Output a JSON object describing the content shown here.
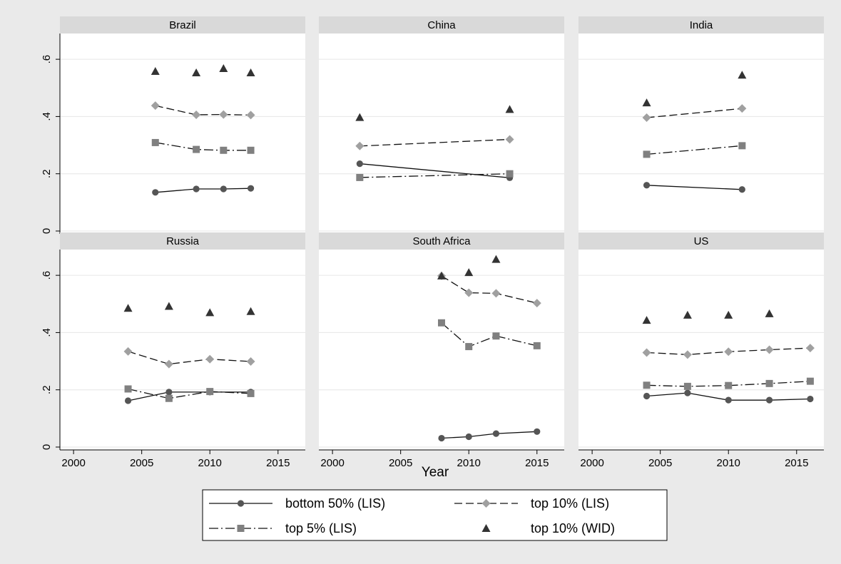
{
  "chart_data": {
    "type": "line",
    "xlabel": "Year",
    "xlim": [
      1999,
      2017
    ],
    "ylim": [
      -0.01,
      0.69
    ],
    "x_ticks": [
      "2000",
      "2005",
      "2010",
      "2015"
    ],
    "y_ticks": [
      "0",
      ".2",
      ".4",
      ".6"
    ],
    "grid": true,
    "legend_position": "bottom",
    "legend": [
      {
        "name": "bottom 50% (LIS)",
        "marker": "circle",
        "line": "solid",
        "color": "#555555"
      },
      {
        "name": "top 10% (LIS)",
        "marker": "diamond",
        "line": "dashed",
        "color": "#a0a0a0"
      },
      {
        "name": "top 5% (LIS)",
        "marker": "square",
        "line": "dashdot",
        "color": "#808080"
      },
      {
        "name": "top 10% (WID)",
        "marker": "triangle",
        "line": "none",
        "color": "#333333"
      }
    ],
    "panels": [
      {
        "title": "Brazil",
        "series": [
          {
            "key": "bottom50",
            "x": [
              2006,
              2009,
              2011,
              2013
            ],
            "y": [
              0.135,
              0.147,
              0.147,
              0.149
            ]
          },
          {
            "key": "top10lis",
            "x": [
              2006,
              2009,
              2011,
              2013
            ],
            "y": [
              0.438,
              0.406,
              0.407,
              0.405
            ]
          },
          {
            "key": "top5lis",
            "x": [
              2006,
              2009,
              2011,
              2013
            ],
            "y": [
              0.309,
              0.285,
              0.282,
              0.282
            ]
          },
          {
            "key": "top10wid",
            "x": [
              2006,
              2009,
              2011,
              2013
            ],
            "y": [
              0.558,
              0.553,
              0.568,
              0.553
            ]
          }
        ]
      },
      {
        "title": "China",
        "series": [
          {
            "key": "bottom50",
            "x": [
              2002,
              2013
            ],
            "y": [
              0.235,
              0.186
            ]
          },
          {
            "key": "top10lis",
            "x": [
              2002,
              2013
            ],
            "y": [
              0.297,
              0.32
            ]
          },
          {
            "key": "top5lis",
            "x": [
              2002,
              2013
            ],
            "y": [
              0.187,
              0.2
            ]
          },
          {
            "key": "top10wid",
            "x": [
              2002,
              2013
            ],
            "y": [
              0.397,
              0.425
            ]
          }
        ]
      },
      {
        "title": "India",
        "series": [
          {
            "key": "bottom50",
            "x": [
              2004,
              2011
            ],
            "y": [
              0.16,
              0.145
            ]
          },
          {
            "key": "top10lis",
            "x": [
              2004,
              2011
            ],
            "y": [
              0.396,
              0.428
            ]
          },
          {
            "key": "top5lis",
            "x": [
              2004,
              2011
            ],
            "y": [
              0.268,
              0.298
            ]
          },
          {
            "key": "top10wid",
            "x": [
              2004,
              2011
            ],
            "y": [
              0.448,
              0.545
            ]
          }
        ]
      },
      {
        "title": "Russia",
        "series": [
          {
            "key": "bottom50",
            "x": [
              2004,
              2007,
              2010,
              2013
            ],
            "y": [
              0.162,
              0.192,
              0.192,
              0.192
            ]
          },
          {
            "key": "top10lis",
            "x": [
              2004,
              2007,
              2010,
              2013
            ],
            "y": [
              0.334,
              0.29,
              0.307,
              0.299
            ]
          },
          {
            "key": "top5lis",
            "x": [
              2004,
              2007,
              2010,
              2013
            ],
            "y": [
              0.203,
              0.17,
              0.194,
              0.187
            ]
          },
          {
            "key": "top10wid",
            "x": [
              2004,
              2007,
              2010,
              2013
            ],
            "y": [
              0.485,
              0.492,
              0.47,
              0.474
            ]
          }
        ]
      },
      {
        "title": "South Africa",
        "series": [
          {
            "key": "bottom50",
            "x": [
              2008,
              2010,
              2012,
              2015
            ],
            "y": [
              0.031,
              0.036,
              0.047,
              0.054
            ]
          },
          {
            "key": "top10lis",
            "x": [
              2008,
              2010,
              2012,
              2015
            ],
            "y": [
              0.598,
              0.539,
              0.537,
              0.503
            ]
          },
          {
            "key": "top5lis",
            "x": [
              2008,
              2010,
              2012,
              2015
            ],
            "y": [
              0.434,
              0.351,
              0.388,
              0.354
            ]
          },
          {
            "key": "top10wid",
            "x": [
              2008,
              2010,
              2012
            ],
            "y": [
              0.598,
              0.61,
              0.656
            ]
          }
        ]
      },
      {
        "title": "US",
        "series": [
          {
            "key": "bottom50",
            "x": [
              2004,
              2007,
              2010,
              2013,
              2016
            ],
            "y": [
              0.178,
              0.189,
              0.164,
              0.164,
              0.168
            ]
          },
          {
            "key": "top10lis",
            "x": [
              2004,
              2007,
              2010,
              2013,
              2016
            ],
            "y": [
              0.33,
              0.323,
              0.333,
              0.34,
              0.346
            ]
          },
          {
            "key": "top5lis",
            "x": [
              2004,
              2007,
              2010,
              2013,
              2016
            ],
            "y": [
              0.216,
              0.212,
              0.215,
              0.222,
              0.23
            ]
          },
          {
            "key": "top10wid",
            "x": [
              2004,
              2007,
              2010,
              2013
            ],
            "y": [
              0.443,
              0.461,
              0.461,
              0.466
            ]
          }
        ]
      }
    ]
  }
}
